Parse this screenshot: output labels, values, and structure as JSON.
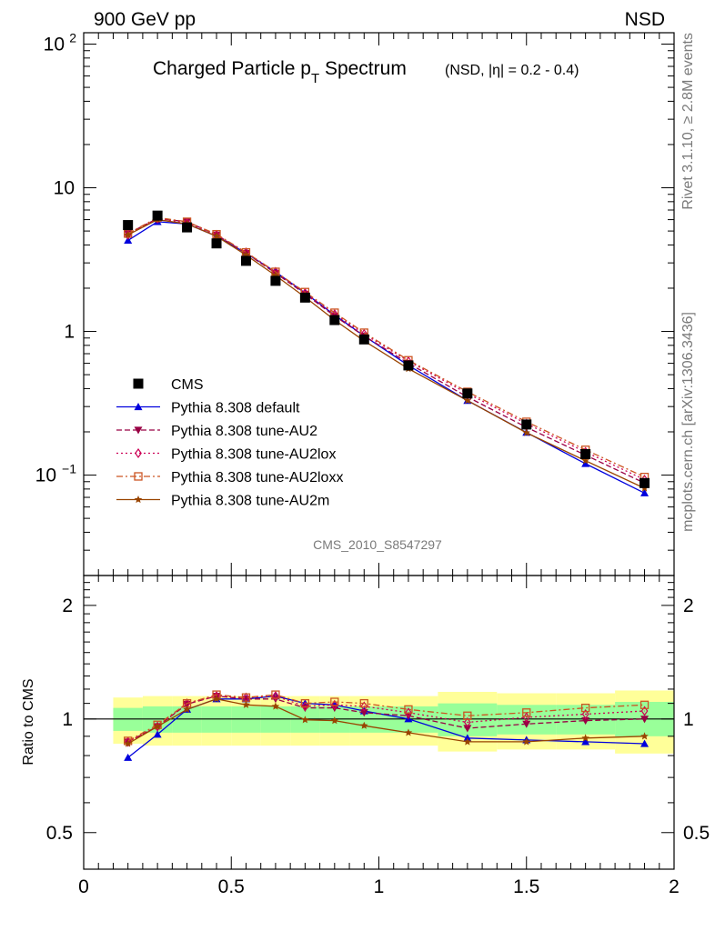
{
  "header": {
    "left": "900 GeV pp",
    "right": "NSD",
    "side_top": "Rivet 3.1.10, ≥ 2.8M events",
    "side_bottom": "mcplots.cern.ch [arXiv:1306.3436]",
    "analysis_id": "CMS_2010_S8547297"
  },
  "colors": {
    "data": "#000000",
    "default": "#0000dd",
    "AU2": "#990044",
    "AU2lox": "#cc0055",
    "AU2loxx": "#cc5522",
    "AU2m": "#994400",
    "band_inner": "#99ff99",
    "band_outer": "#ffff99"
  },
  "chart_data": [
    {
      "type": "line",
      "panel": "main",
      "title": "Charged Particle p",
      "title_sub": "T",
      "title_rest": " Spectrum",
      "title_note": "(NSD, |η| = 0.2 - 0.4)",
      "xlabel": "",
      "ylabel": "",
      "xlim": [
        0,
        2
      ],
      "ylim": [
        0.02,
        120
      ],
      "yscale": "log",
      "y_ticks": [
        {
          "value": 100,
          "base": "10",
          "exp": "2"
        },
        {
          "value": 10,
          "base": "10",
          "exp": ""
        },
        {
          "value": 1,
          "base": "1",
          "exp": ""
        },
        {
          "value": 0.1,
          "base": "10",
          "exp": "−1"
        }
      ],
      "legend_position": "left",
      "x": [
        0.15,
        0.25,
        0.35,
        0.45,
        0.55,
        0.65,
        0.75,
        0.85,
        0.95,
        1.1,
        1.3,
        1.5,
        1.7,
        1.9
      ],
      "series": [
        {
          "key": "data",
          "name": "CMS",
          "marker": "square",
          "line": "none",
          "values": [
            5.5,
            6.4,
            5.3,
            4.1,
            3.1,
            2.25,
            1.72,
            1.2,
            0.88,
            0.58,
            0.37,
            0.225,
            0.14,
            0.088
          ]
        },
        {
          "key": "default",
          "name": "Pythia 8.308 default",
          "marker": "triangle-up",
          "line": "solid",
          "values": [
            4.3,
            5.8,
            5.6,
            4.6,
            3.5,
            2.6,
            1.85,
            1.3,
            0.93,
            0.58,
            0.33,
            0.198,
            0.12,
            0.075
          ]
        },
        {
          "key": "AU2",
          "name": "Pythia 8.308 tune-AU2",
          "marker": "triangle-down",
          "line": "dashed",
          "values": [
            4.8,
            6.1,
            5.8,
            4.7,
            3.5,
            2.55,
            1.82,
            1.28,
            0.93,
            0.6,
            0.35,
            0.215,
            0.138,
            0.088
          ]
        },
        {
          "key": "AU2lox",
          "name": "Pythia 8.308 tune-AU2lox",
          "marker": "diamond-open",
          "line": "dotted",
          "values": [
            4.7,
            6.1,
            5.7,
            4.7,
            3.55,
            2.6,
            1.85,
            1.32,
            0.96,
            0.62,
            0.37,
            0.228,
            0.145,
            0.093
          ]
        },
        {
          "key": "AU2loxx",
          "name": "Pythia 8.308 tune-AU2loxx",
          "marker": "square-open",
          "line": "dashdot",
          "values": [
            4.8,
            6.2,
            5.8,
            4.75,
            3.55,
            2.6,
            1.88,
            1.35,
            0.98,
            0.63,
            0.38,
            0.235,
            0.15,
            0.097
          ]
        },
        {
          "key": "AU2m",
          "name": "Pythia 8.308 tune-AU2m",
          "marker": "star",
          "line": "solid",
          "values": [
            4.7,
            6.0,
            5.6,
            4.6,
            3.4,
            2.45,
            1.73,
            1.2,
            0.86,
            0.55,
            0.33,
            0.197,
            0.126,
            0.081
          ]
        }
      ]
    },
    {
      "type": "line",
      "panel": "ratio",
      "ylabel": "Ratio to CMS",
      "xlim": [
        0,
        2
      ],
      "ylim": [
        0.4,
        2.4
      ],
      "yscale": "log",
      "y_ticks": [
        {
          "value": 0.5,
          "label": "0.5"
        },
        {
          "value": 1,
          "label": "1"
        },
        {
          "value": 2,
          "label": "2"
        }
      ],
      "x_ticks": [
        {
          "value": 0,
          "label": "0"
        },
        {
          "value": 0.5,
          "label": "0.5"
        },
        {
          "value": 1,
          "label": "1"
        },
        {
          "value": 1.5,
          "label": "1.5"
        },
        {
          "value": 2,
          "label": "2"
        }
      ],
      "bins": [
        [
          0.1,
          0.2
        ],
        [
          0.2,
          0.3
        ],
        [
          0.3,
          0.4
        ],
        [
          0.4,
          0.5
        ],
        [
          0.5,
          0.6
        ],
        [
          0.6,
          0.7
        ],
        [
          0.7,
          0.8
        ],
        [
          0.8,
          0.9
        ],
        [
          0.9,
          1.0
        ],
        [
          1.0,
          1.2
        ],
        [
          1.2,
          1.4
        ],
        [
          1.4,
          1.6
        ],
        [
          1.6,
          1.8
        ],
        [
          1.8,
          2.0
        ]
      ],
      "band_inner": [
        [
          0.93,
          1.07
        ],
        [
          0.92,
          1.08
        ],
        [
          0.92,
          1.08
        ],
        [
          0.92,
          1.08
        ],
        [
          0.92,
          1.08
        ],
        [
          0.92,
          1.08
        ],
        [
          0.92,
          1.08
        ],
        [
          0.92,
          1.08
        ],
        [
          0.92,
          1.08
        ],
        [
          0.92,
          1.08
        ],
        [
          0.9,
          1.1
        ],
        [
          0.91,
          1.09
        ],
        [
          0.91,
          1.09
        ],
        [
          0.9,
          1.11
        ]
      ],
      "band_outer": [
        [
          0.86,
          1.14
        ],
        [
          0.85,
          1.15
        ],
        [
          0.85,
          1.15
        ],
        [
          0.85,
          1.15
        ],
        [
          0.85,
          1.15
        ],
        [
          0.85,
          1.15
        ],
        [
          0.85,
          1.15
        ],
        [
          0.85,
          1.15
        ],
        [
          0.85,
          1.15
        ],
        [
          0.85,
          1.15
        ],
        [
          0.82,
          1.18
        ],
        [
          0.83,
          1.17
        ],
        [
          0.83,
          1.17
        ],
        [
          0.81,
          1.19
        ]
      ],
      "x": [
        0.15,
        0.25,
        0.35,
        0.45,
        0.55,
        0.65,
        0.75,
        0.85,
        0.95,
        1.1,
        1.3,
        1.5,
        1.7,
        1.9
      ],
      "series": [
        {
          "key": "default",
          "marker": "triangle-up",
          "line": "solid",
          "values": [
            0.79,
            0.91,
            1.06,
            1.13,
            1.13,
            1.15,
            1.1,
            1.09,
            1.05,
            1.0,
            0.89,
            0.88,
            0.87,
            0.86
          ]
        },
        {
          "key": "AU2",
          "marker": "triangle-down",
          "line": "dashed",
          "values": [
            0.87,
            0.955,
            1.095,
            1.15,
            1.13,
            1.13,
            1.07,
            1.07,
            1.04,
            1.02,
            0.945,
            0.97,
            0.99,
            1.0
          ]
        },
        {
          "key": "AU2lox",
          "marker": "diamond-open",
          "line": "dotted",
          "values": [
            0.87,
            0.955,
            1.1,
            1.15,
            1.14,
            1.15,
            1.08,
            1.09,
            1.08,
            1.04,
            0.98,
            1.01,
            1.03,
            1.05
          ]
        },
        {
          "key": "AU2loxx",
          "marker": "square-open",
          "line": "dashdot",
          "values": [
            0.875,
            0.965,
            1.1,
            1.16,
            1.14,
            1.16,
            1.1,
            1.11,
            1.1,
            1.06,
            1.02,
            1.04,
            1.07,
            1.09
          ]
        },
        {
          "key": "AU2m",
          "marker": "star",
          "line": "solid",
          "values": [
            0.86,
            0.955,
            1.06,
            1.13,
            1.09,
            1.08,
            0.995,
            0.99,
            0.96,
            0.92,
            0.87,
            0.87,
            0.89,
            0.9
          ]
        }
      ]
    }
  ]
}
